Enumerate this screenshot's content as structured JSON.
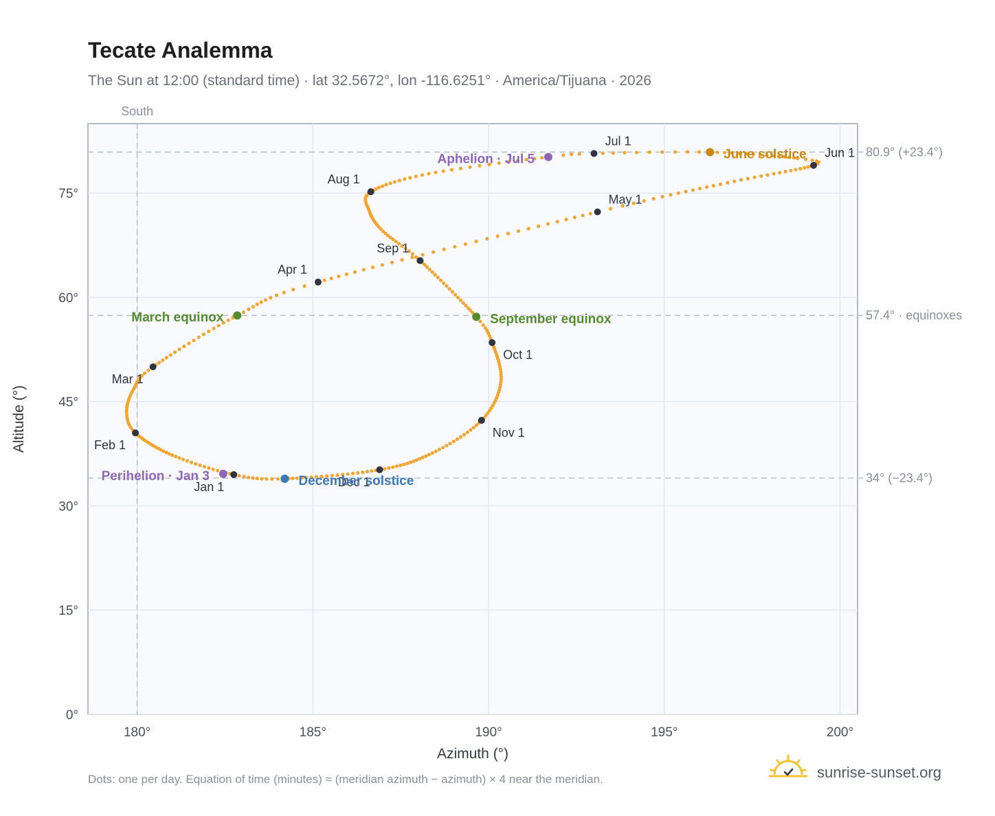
{
  "header": {
    "title": "Tecate Analemma",
    "subtitle": "The Sun at 12:00 (standard time) · lat 32.5672°, lon -116.6251° · America/Tijuana · 2026"
  },
  "footer": {
    "note": "Dots: one per day. Equation of time (minutes) ≈ (meridian azimuth − azimuth) × 4 near the meridian.",
    "brand": "sunrise-sunset.org",
    "brand_icon": "sun-icon"
  },
  "colors": {
    "path": "#f2a530",
    "month_marker": "#2f3540",
    "equinox": "#548c2f",
    "june_solstice": "#c98a12",
    "december_solstice": "#3b78b5",
    "perihelion": "#9066b8",
    "aphelion": "#9066b8"
  },
  "chart_data": {
    "type": "scatter",
    "title": "Tecate Analemma",
    "xlabel": "Azimuth (°)",
    "ylabel": "Altitude (°)",
    "xlim": [
      178.6,
      200.5
    ],
    "ylim": [
      0,
      85
    ],
    "x_ticks": [
      180,
      185,
      190,
      195,
      200
    ],
    "x_tick_labels": [
      "180°",
      "185°",
      "190°",
      "195°",
      "200°"
    ],
    "y_ticks": [
      0,
      15,
      30,
      45,
      60,
      75
    ],
    "y_tick_labels": [
      "0°",
      "15°",
      "30°",
      "45°",
      "60°",
      "75°"
    ],
    "grid": true,
    "meridian": {
      "azimuth": 180,
      "label": "South"
    },
    "reference_lines": [
      {
        "altitude": 80.9,
        "label": "80.9° (+23.4°)"
      },
      {
        "altitude": 57.4,
        "label": "57.4° · equinoxes"
      },
      {
        "altitude": 34.0,
        "label": "34° (−23.4°)"
      }
    ],
    "daily_path_keypoints": [
      {
        "day": 1,
        "az": 182.75,
        "alt": 34.5
      },
      {
        "day": 16,
        "az": 181.0,
        "alt": 37.3
      },
      {
        "day": 32,
        "az": 179.95,
        "alt": 40.5
      },
      {
        "day": 40,
        "az": 179.7,
        "alt": 43.5
      },
      {
        "day": 50,
        "az": 179.9,
        "alt": 46.8
      },
      {
        "day": 60,
        "az": 180.45,
        "alt": 50.0
      },
      {
        "day": 79,
        "az": 182.85,
        "alt": 57.4
      },
      {
        "day": 91,
        "az": 185.15,
        "alt": 62.2
      },
      {
        "day": 121,
        "az": 193.1,
        "alt": 72.3
      },
      {
        "day": 136,
        "az": 196.8,
        "alt": 76.5
      },
      {
        "day": 152,
        "az": 199.25,
        "alt": 79.0
      },
      {
        "day": 158,
        "az": 198.8,
        "alt": 80.0
      },
      {
        "day": 172,
        "az": 196.3,
        "alt": 80.9
      },
      {
        "day": 182,
        "az": 193.0,
        "alt": 80.7
      },
      {
        "day": 186,
        "az": 191.7,
        "alt": 80.2
      },
      {
        "day": 200,
        "az": 188.3,
        "alt": 77.8
      },
      {
        "day": 213,
        "az": 186.65,
        "alt": 75.2
      },
      {
        "day": 222,
        "az": 186.6,
        "alt": 72.5
      },
      {
        "day": 232,
        "az": 187.0,
        "alt": 69.5
      },
      {
        "day": 244,
        "az": 188.05,
        "alt": 65.3
      },
      {
        "day": 266,
        "az": 189.65,
        "alt": 57.2
      },
      {
        "day": 274,
        "az": 190.1,
        "alt": 53.5
      },
      {
        "day": 290,
        "az": 190.35,
        "alt": 47.8
      },
      {
        "day": 305,
        "az": 189.8,
        "alt": 42.3
      },
      {
        "day": 320,
        "az": 188.4,
        "alt": 37.6
      },
      {
        "day": 335,
        "az": 186.9,
        "alt": 35.2
      },
      {
        "day": 355,
        "az": 184.2,
        "alt": 33.9
      },
      {
        "day": 365,
        "az": 182.75,
        "alt": 34.5
      }
    ],
    "month_markers": [
      {
        "label": "Jan 1",
        "az": 182.75,
        "alt": 34.5,
        "pos": "below-left"
      },
      {
        "label": "Feb 1",
        "az": 179.95,
        "alt": 40.5,
        "pos": "below-left"
      },
      {
        "label": "Mar 1",
        "az": 180.45,
        "alt": 50.0,
        "pos": "below-left"
      },
      {
        "label": "Apr 1",
        "az": 185.15,
        "alt": 62.2,
        "pos": "above-left"
      },
      {
        "label": "May 1",
        "az": 193.1,
        "alt": 72.3,
        "pos": "above-right"
      },
      {
        "label": "Jun 1",
        "az": 199.25,
        "alt": 79.0,
        "pos": "above-right"
      },
      {
        "label": "Jul 1",
        "az": 193.0,
        "alt": 80.7,
        "pos": "above-right"
      },
      {
        "label": "Aug 1",
        "az": 186.65,
        "alt": 75.2,
        "pos": "above-left"
      },
      {
        "label": "Sep 1",
        "az": 188.05,
        "alt": 65.3,
        "pos": "above-left"
      },
      {
        "label": "Oct 1",
        "az": 190.1,
        "alt": 53.5,
        "pos": "below-right"
      },
      {
        "label": "Nov 1",
        "az": 189.8,
        "alt": 42.3,
        "pos": "below-right"
      },
      {
        "label": "Dec 1",
        "az": 186.9,
        "alt": 35.2,
        "pos": "below-left"
      }
    ],
    "events": [
      {
        "label": "March equinox",
        "az": 182.85,
        "alt": 57.4,
        "color": "#548c2f",
        "pos": "left"
      },
      {
        "label": "September equinox",
        "az": 189.65,
        "alt": 57.2,
        "color": "#548c2f",
        "pos": "right"
      },
      {
        "label": "June solstice",
        "az": 196.3,
        "alt": 80.9,
        "color": "#c98a12",
        "pos": "right"
      },
      {
        "label": "December solstice",
        "az": 184.2,
        "alt": 33.9,
        "color": "#3b78b5",
        "pos": "right"
      },
      {
        "label": "Perihelion · Jan 3",
        "az": 182.45,
        "alt": 34.6,
        "color": "#9066b8",
        "pos": "left"
      },
      {
        "label": "Aphelion · Jul 5",
        "az": 191.7,
        "alt": 80.2,
        "color": "#9066b8",
        "pos": "left"
      }
    ]
  }
}
